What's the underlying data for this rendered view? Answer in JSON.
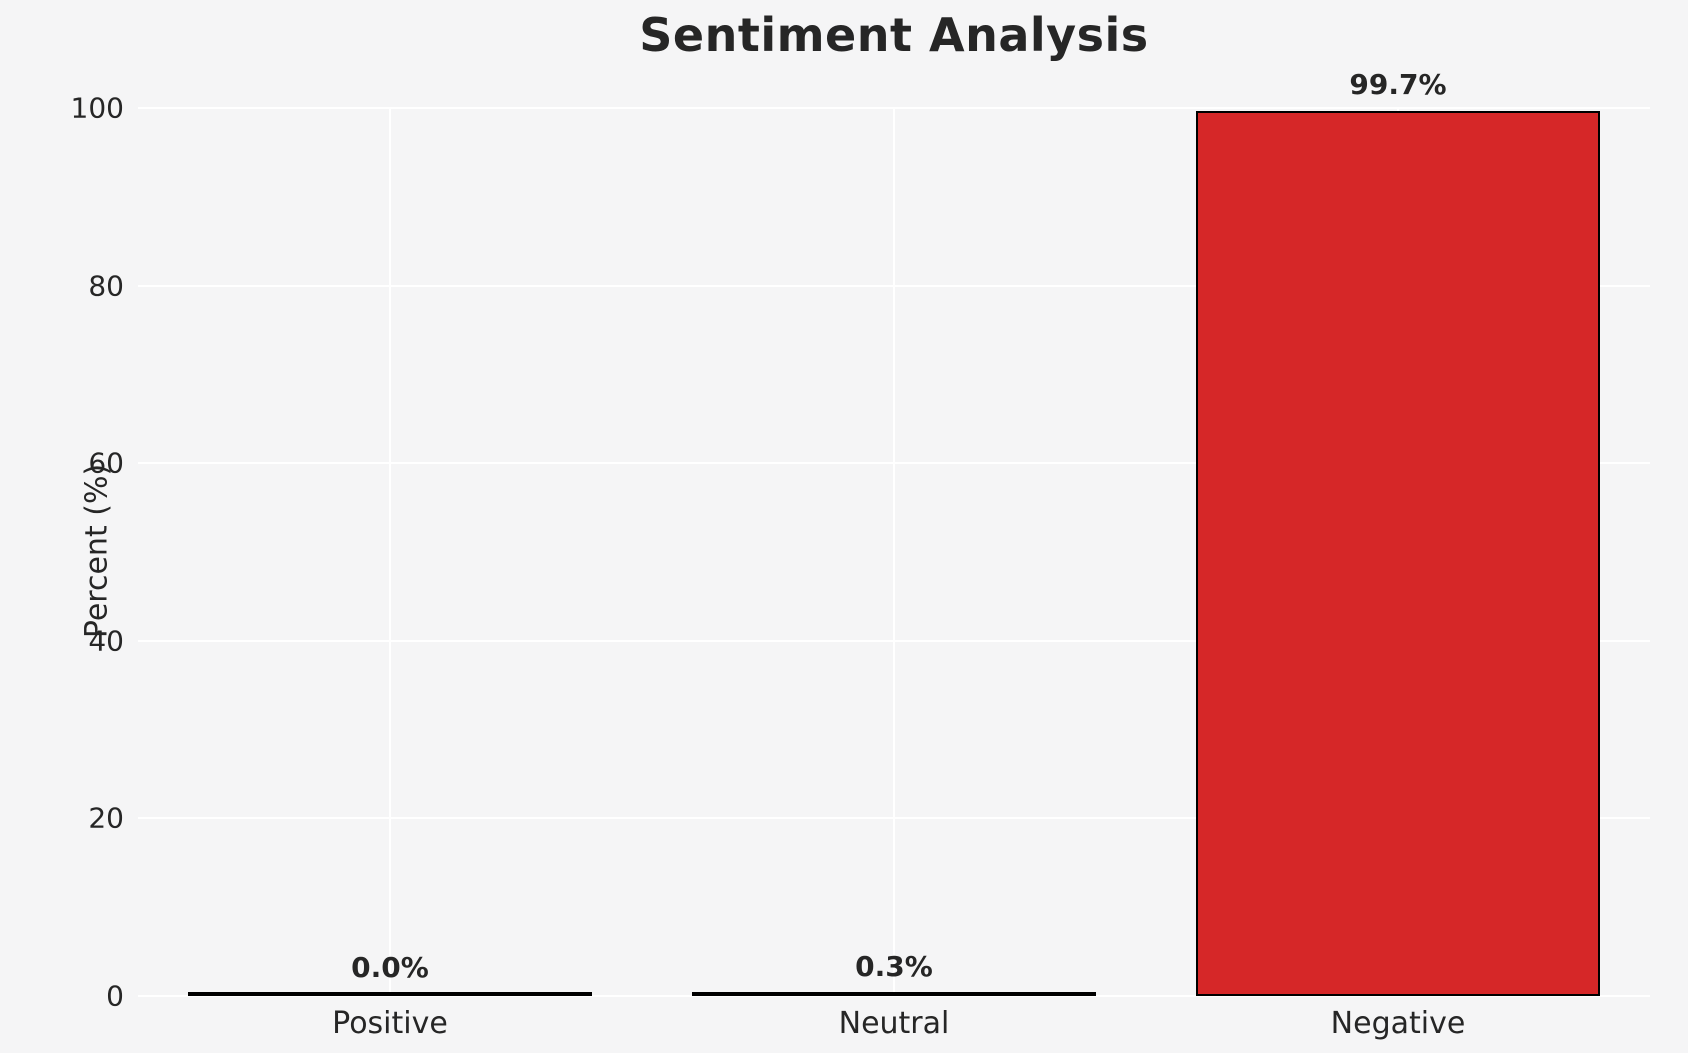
{
  "chart_data": {
    "type": "bar",
    "title": "Sentiment Analysis",
    "xlabel": "",
    "ylabel": "Percent (%)",
    "categories": [
      "Positive",
      "Neutral",
      "Negative"
    ],
    "values": [
      0.0,
      0.3,
      99.7
    ],
    "value_labels": [
      "0.0%",
      "0.3%",
      "99.7%"
    ],
    "ylim": [
      0,
      100
    ],
    "yticks": [
      0,
      20,
      40,
      60,
      80,
      100
    ],
    "grid": "on",
    "legend": "none",
    "colors": {
      "bar_fill": "#d62728",
      "bar_edge": "#000000",
      "background": "#f5f5f6",
      "gridline": "#ffffff",
      "text": "#262626"
    }
  }
}
